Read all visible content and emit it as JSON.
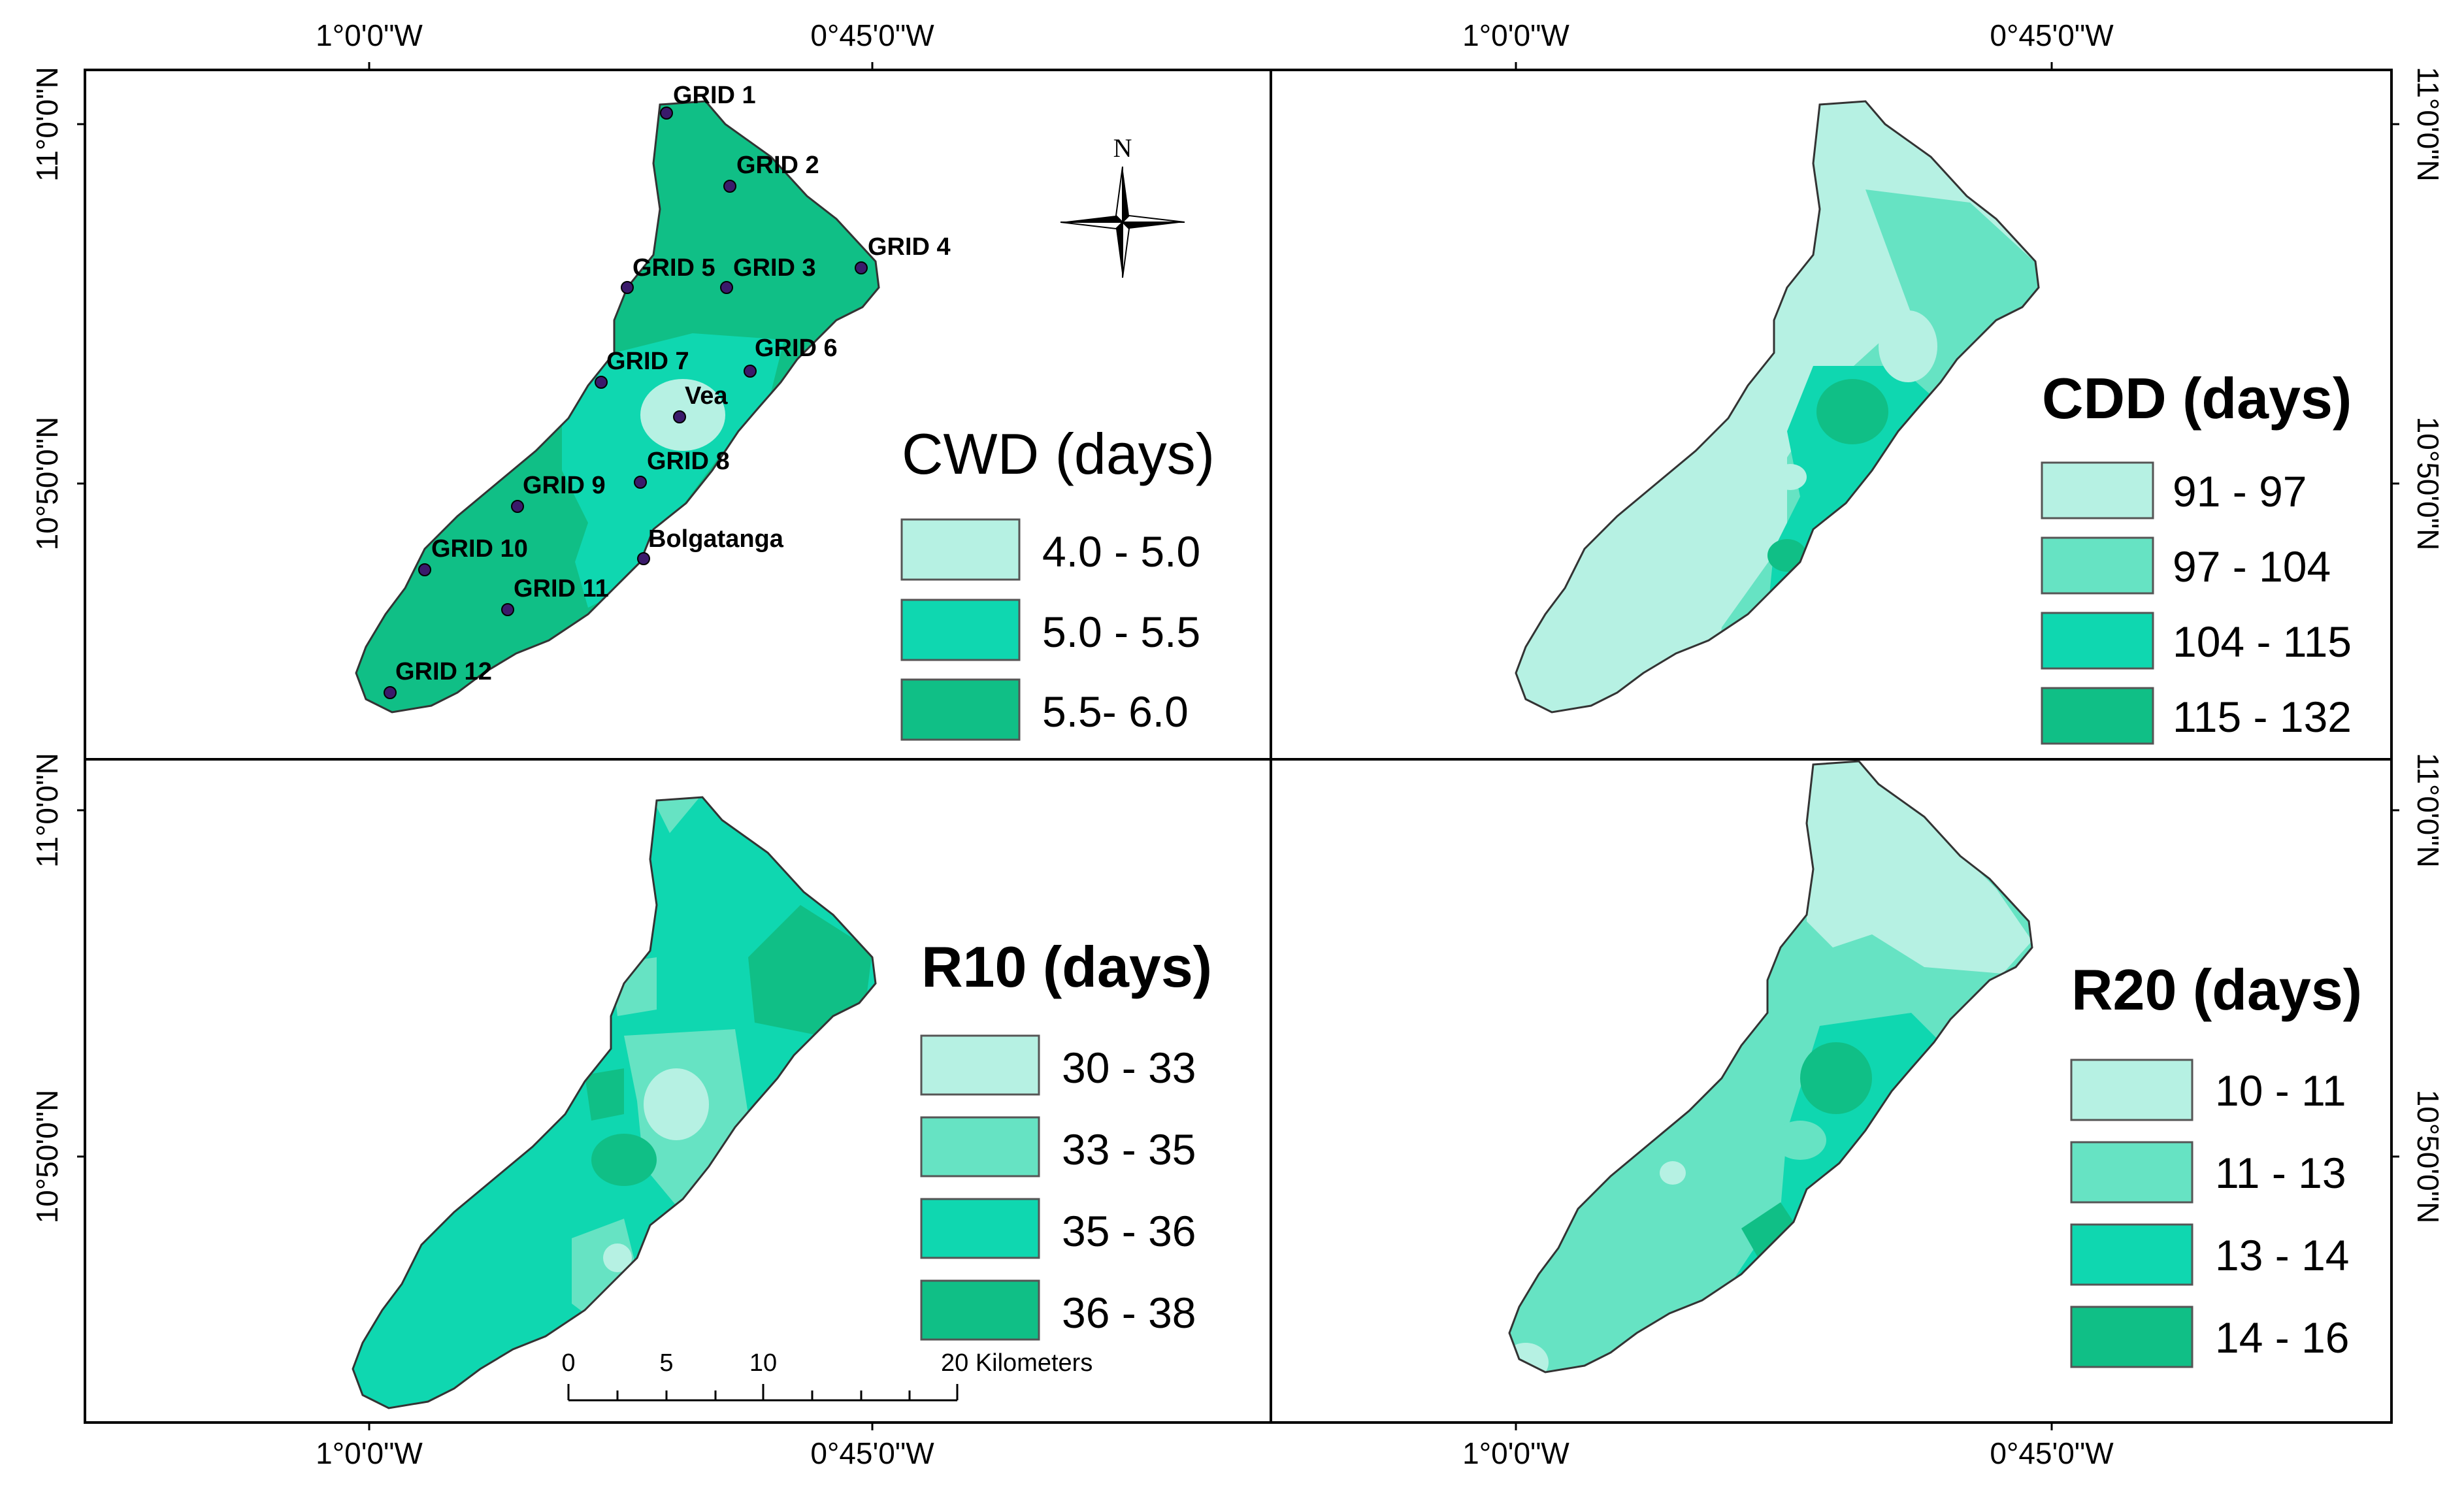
{
  "coords": {
    "top": [
      "1°0'0\"W",
      "0°45'0\"W",
      "1°0'0\"W",
      "0°45'0\"W"
    ],
    "bottom": [
      "1°0'0\"W",
      "0°45'0\"W",
      "1°0'0\"W",
      "0°45'0\"W"
    ],
    "left": [
      "11°0'0\"N",
      "10°50'0\"N",
      "11°0'0\"N",
      "10°50'0\"N"
    ],
    "right": [
      "11°0'0\"N",
      "10°50'0\"N",
      "11°0'0\"N",
      "10°50'0\"N"
    ]
  },
  "colors": {
    "c1": "#b6f1e3",
    "c2": "#66e3c3",
    "c3": "#0fd7b0",
    "c4": "#10bf86",
    "boundary": "#333333",
    "point": "#3a1a6b"
  },
  "panels": [
    {
      "title": "CWD (days)",
      "legend": [
        {
          "label": "4.0 - 5.0",
          "color": "#b6f1e3"
        },
        {
          "label": "5.0 - 5.5",
          "color": "#0fd7b0"
        },
        {
          "label": "5.5- 6.0",
          "color": "#10bf86"
        }
      ]
    },
    {
      "title": "CDD (days)",
      "legend": [
        {
          "label": "91 - 97",
          "color": "#b6f1e3"
        },
        {
          "label": "97 - 104",
          "color": "#66e3c3"
        },
        {
          "label": "104 - 115",
          "color": "#0fd7b0"
        },
        {
          "label": "115 - 132",
          "color": "#10bf86"
        }
      ]
    },
    {
      "title": "R10 (days)",
      "legend": [
        {
          "label": "30 - 33",
          "color": "#b6f1e3"
        },
        {
          "label": "33 - 35",
          "color": "#66e3c3"
        },
        {
          "label": "35 - 36",
          "color": "#0fd7b0"
        },
        {
          "label": "36 - 38",
          "color": "#10bf86"
        }
      ]
    },
    {
      "title": "R20 (days)",
      "legend": [
        {
          "label": "10 - 11",
          "color": "#b6f1e3"
        },
        {
          "label": "11 - 13",
          "color": "#66e3c3"
        },
        {
          "label": "13 - 14",
          "color": "#0fd7b0"
        },
        {
          "label": "14 - 16",
          "color": "#10bf86"
        }
      ]
    }
  ],
  "points": [
    {
      "name": "GRID 1"
    },
    {
      "name": "GRID 2"
    },
    {
      "name": "GRID 3"
    },
    {
      "name": "GRID 4"
    },
    {
      "name": "GRID 5"
    },
    {
      "name": "GRID 6"
    },
    {
      "name": "GRID 7"
    },
    {
      "name": "GRID 8"
    },
    {
      "name": "GRID 9"
    },
    {
      "name": "GRID 10"
    },
    {
      "name": "GRID 11"
    },
    {
      "name": "GRID 12"
    },
    {
      "name": "Vea"
    },
    {
      "name": "Bolgatanga"
    }
  ],
  "north_arrow": "N",
  "scale_bar": {
    "ticks": [
      "0",
      "5",
      "10",
      "20 Kilometers"
    ]
  }
}
